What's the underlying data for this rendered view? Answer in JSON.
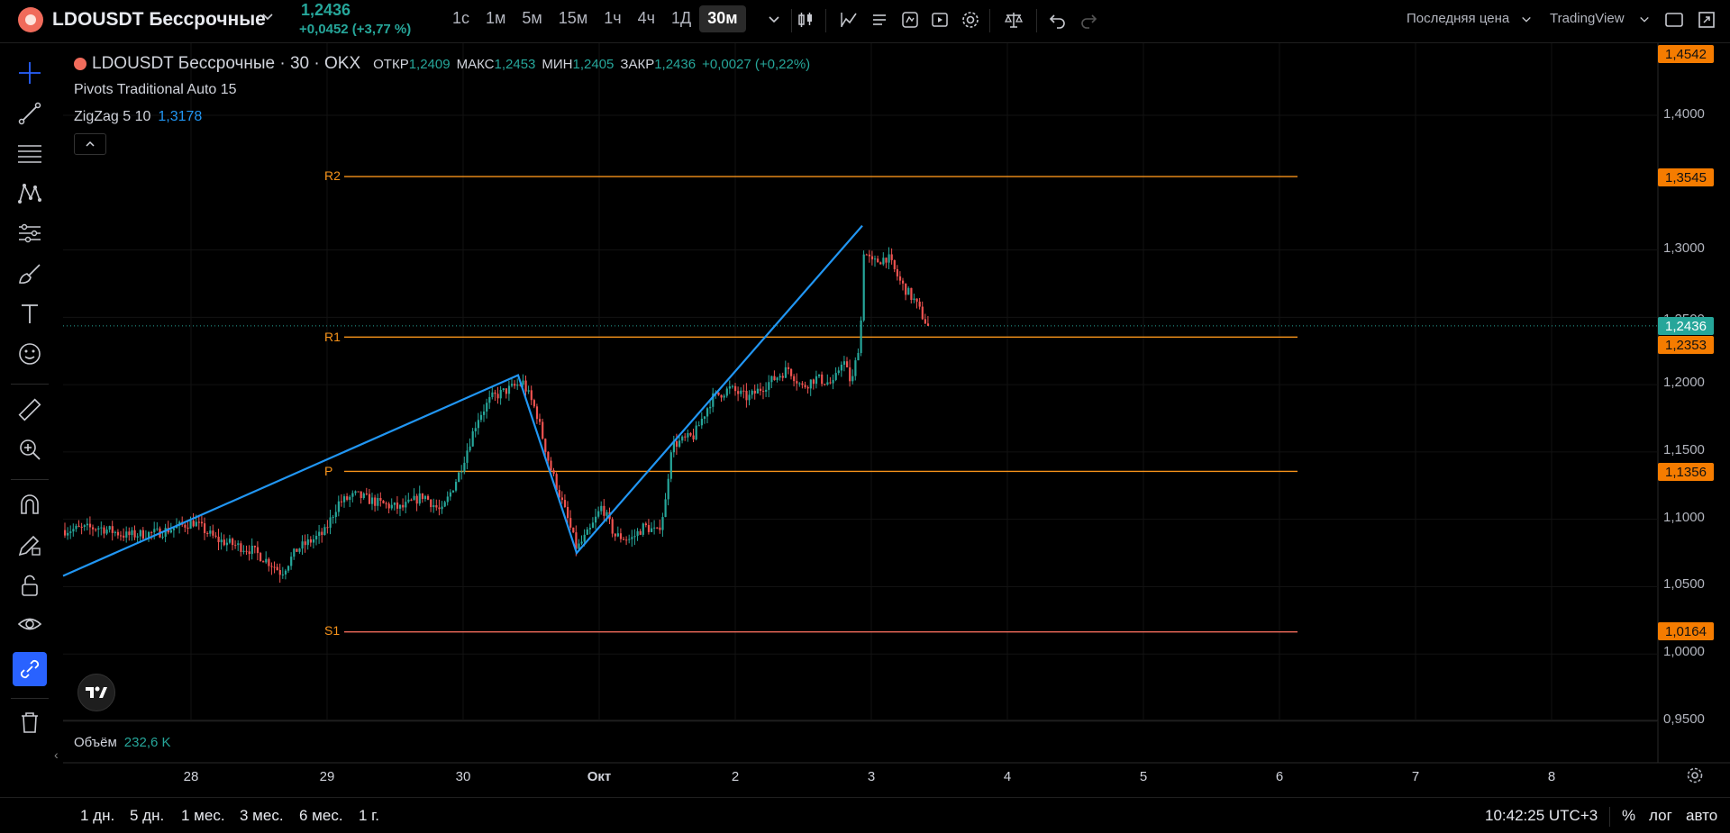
{
  "header": {
    "symbol_name": "LDOUSDT Бессрочные",
    "last_price": "1,2436",
    "change": "+0,0452 (+3,77 %)",
    "intervals": [
      "1с",
      "1м",
      "5м",
      "15м",
      "1ч",
      "4ч",
      "1Д",
      "30м"
    ],
    "active_interval": "30м",
    "price_source": "Последняя цена",
    "platform": "TradingView"
  },
  "legend": {
    "title": "LDOUSDT Бессрочные · 30 · OKX",
    "open_label": "ОТКР",
    "open": "1,2409",
    "high_label": "МАКС",
    "high": "1,2453",
    "low_label": "МИН",
    "low": "1,2405",
    "close_label": "ЗАКР",
    "close": "1,2436",
    "change": "+0,0027 (+0,22%)",
    "indicator1": "Pivots Traditional Auto 15",
    "indicator2_name": "ZigZag 5 10",
    "indicator2_value": "1,3178",
    "collapse": "^"
  },
  "pivots": {
    "R2": "R2",
    "R1": "R1",
    "P": "P",
    "S1": "S1",
    "R2_value": "1,3545",
    "R1_value": "1,2353",
    "P_value": "1,1356",
    "S1_value": "1,0164",
    "top_value": "1,4542"
  },
  "price_axis": {
    "labels": [
      "1,4000",
      "1,3000",
      "1,2500",
      "1,2000",
      "1,1500",
      "1,1000",
      "1,0500",
      "1,0000",
      "0,9500"
    ],
    "current_price": "1,2436"
  },
  "time_axis": {
    "labels": [
      "28",
      "29",
      "30",
      "Окт",
      "2",
      "3",
      "4",
      "5",
      "6",
      "7",
      "8"
    ]
  },
  "volume": {
    "label": "Объём",
    "value": "232,6 K"
  },
  "bottom": {
    "ranges": [
      "1 дн.",
      "5 дн.",
      "1 мес.",
      "3 мес.",
      "6 мес.",
      "1 г."
    ],
    "clock": "10:42:25 UTC+3",
    "percent": "%",
    "log": "лог",
    "auto": "авто"
  },
  "colors": {
    "up": "#26a69a",
    "down": "#ef5350",
    "zigzag": "#2196f3",
    "pivot": "#f7931a",
    "background": "#000000"
  },
  "chart_data": {
    "type": "candlestick",
    "symbol": "LDOUSDT",
    "timeframe": "30",
    "ylim": [
      0.95,
      1.46
    ],
    "zigzag": [
      {
        "t": "27 Sep 12:00",
        "price": 1.058
      },
      {
        "t": "30 Sep 09:00",
        "price": 1.207
      },
      {
        "t": "Oct 1 00:00",
        "price": 1.075
      },
      {
        "t": "Oct 2 23:00",
        "price": 1.318
      },
      {
        "t": "Oct 3 10:00",
        "price": 1.244
      }
    ],
    "pivot_levels": {
      "R2": 1.3545,
      "R1": 1.2353,
      "P": 1.1356,
      "S1": 1.0164
    },
    "current_price": 1.2436
  }
}
